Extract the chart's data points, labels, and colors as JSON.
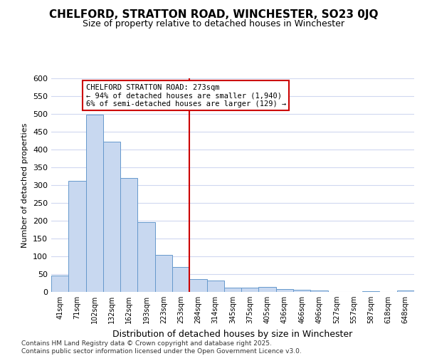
{
  "title": "CHELFORD, STRATTON ROAD, WINCHESTER, SO23 0JQ",
  "subtitle": "Size of property relative to detached houses in Winchester",
  "xlabel": "Distribution of detached houses by size in Winchester",
  "ylabel": "Number of detached properties",
  "categories": [
    "41sqm",
    "71sqm",
    "102sqm",
    "132sqm",
    "162sqm",
    "193sqm",
    "223sqm",
    "253sqm",
    "284sqm",
    "314sqm",
    "345sqm",
    "375sqm",
    "405sqm",
    "436sqm",
    "466sqm",
    "496sqm",
    "527sqm",
    "557sqm",
    "587sqm",
    "618sqm",
    "648sqm"
  ],
  "values": [
    46,
    313,
    498,
    423,
    320,
    196,
    105,
    70,
    37,
    33,
    13,
    12,
    14,
    9,
    6,
    4,
    0,
    0,
    3,
    0,
    4
  ],
  "bar_color": "#c8d8f0",
  "bar_edge_color": "#6699cc",
  "background_color": "#ffffff",
  "grid_color": "#d0d8f0",
  "vline_color": "#cc0000",
  "vline_x_index": 8,
  "annotation_text": "CHELFORD STRATTON ROAD: 273sqm\n← 94% of detached houses are smaller (1,940)\n6% of semi-detached houses are larger (129) →",
  "annotation_box_facecolor": "#ffffff",
  "annotation_box_edgecolor": "#cc0000",
  "footer": "Contains HM Land Registry data © Crown copyright and database right 2025.\nContains public sector information licensed under the Open Government Licence v3.0.",
  "ylim": [
    0,
    600
  ],
  "yticks": [
    0,
    50,
    100,
    150,
    200,
    250,
    300,
    350,
    400,
    450,
    500,
    550,
    600
  ],
  "title_fontsize": 11,
  "subtitle_fontsize": 9,
  "xlabel_fontsize": 9,
  "ylabel_fontsize": 8,
  "xtick_fontsize": 7,
  "ytick_fontsize": 8,
  "footer_fontsize": 6.5
}
